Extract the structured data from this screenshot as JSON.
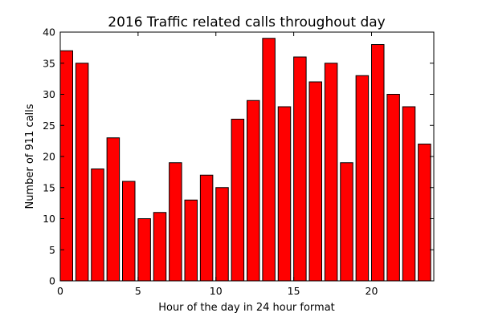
{
  "chart_data": {
    "type": "bar",
    "title": "2016 Traffic related calls throughout day",
    "xlabel": "Hour of the day in 24 hour format",
    "ylabel": "Number of 911 calls",
    "categories": [
      0,
      1,
      2,
      3,
      4,
      5,
      6,
      7,
      8,
      9,
      10,
      11,
      12,
      13,
      14,
      15,
      16,
      17,
      18,
      19,
      20,
      21,
      22,
      23
    ],
    "values": [
      37,
      35,
      18,
      23,
      16,
      10,
      11,
      19,
      13,
      17,
      15,
      26,
      29,
      39,
      28,
      36,
      32,
      35,
      19,
      33,
      38,
      30,
      28,
      22
    ],
    "xlim": [
      0,
      24
    ],
    "ylim": [
      0,
      40
    ],
    "xticks": [
      0,
      5,
      10,
      15,
      20
    ],
    "yticks": [
      0,
      5,
      10,
      15,
      20,
      25,
      30,
      35,
      40
    ],
    "bar_color": "#ff0000",
    "bar_edge_color": "#000000",
    "grid": false,
    "legend": "none"
  }
}
